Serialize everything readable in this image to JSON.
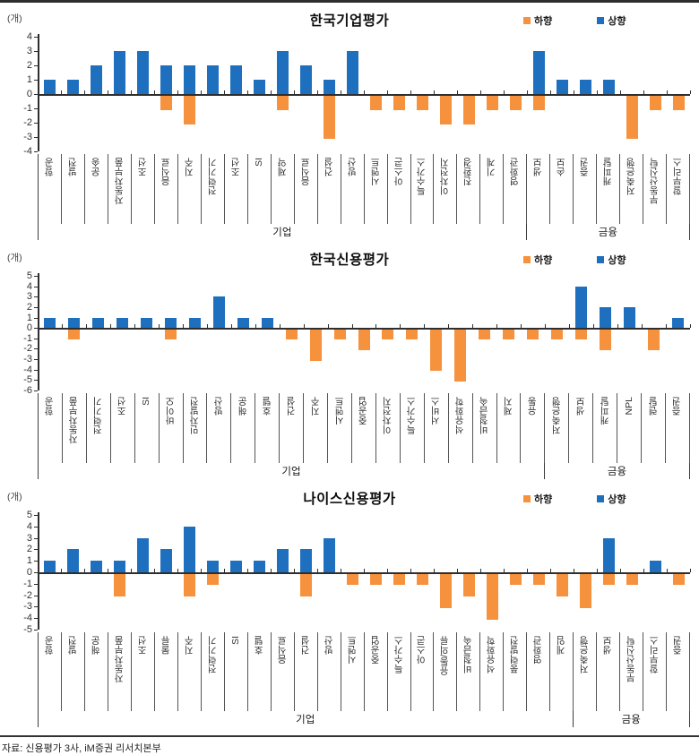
{
  "source_note": "자료: 신용평가 3사, iM증권 리서치본부",
  "legend": {
    "down_label": "하향",
    "up_label": "상향"
  },
  "colors": {
    "up": "#1E70BF",
    "down": "#F6913D",
    "axis": "#2e2e2e"
  },
  "chart_data": [
    {
      "type": "bar",
      "title": "한국기업평가",
      "unit_label": "(개)",
      "ylim": [
        -4,
        4
      ],
      "legend_entries": [
        "하향",
        "상향"
      ],
      "groups": [
        {
          "label": "기업",
          "items": [
            {
              "category": "항공",
              "up": 1,
              "down": 0
            },
            {
              "category": "발전",
              "up": 1,
              "down": 0
            },
            {
              "category": "운송",
              "up": 2,
              "down": 0
            },
            {
              "category": "자동차부품",
              "up": 3,
              "down": 0
            },
            {
              "category": "조선",
              "up": 3,
              "down": 0
            },
            {
              "category": "음식료",
              "up": 2,
              "down": -1
            },
            {
              "category": "지주",
              "up": 2,
              "down": -2
            },
            {
              "category": "전력기기",
              "up": 2,
              "down": 0
            },
            {
              "category": "조선",
              "up": 2,
              "down": 0
            },
            {
              "category": "SI",
              "up": 1,
              "down": 0
            },
            {
              "category": "제약",
              "up": 3,
              "down": -1
            },
            {
              "category": "음식료",
              "up": 2,
              "down": 0
            },
            {
              "category": "건설",
              "up": 1,
              "down": -3
            },
            {
              "category": "방산",
              "up": 3,
              "down": 0
            },
            {
              "category": "시멘트",
              "up": 0,
              "down": -1
            },
            {
              "category": "아스콘",
              "up": 0,
              "down": -1
            },
            {
              "category": "특수가스",
              "up": 0,
              "down": -1
            },
            {
              "category": "이차전지",
              "up": 0,
              "down": -2
            },
            {
              "category": "친환경",
              "up": 0,
              "down": -2
            },
            {
              "category": "기계",
              "up": 0,
              "down": -1
            },
            {
              "category": "영화관",
              "up": 0,
              "down": -1
            }
          ]
        },
        {
          "label": "금융",
          "items": [
            {
              "category": "생보",
              "up": 3,
              "down": -1
            },
            {
              "category": "손보",
              "up": 1,
              "down": 0
            },
            {
              "category": "증권",
              "up": 1,
              "down": 0
            },
            {
              "category": "캐피탈",
              "up": 1,
              "down": 0
            },
            {
              "category": "저축은행",
              "up": 0,
              "down": -3
            },
            {
              "category": "부동산신탁",
              "up": 0,
              "down": -1
            },
            {
              "category": "할부리스",
              "up": 0,
              "down": -1
            }
          ]
        }
      ]
    },
    {
      "type": "bar",
      "title": "한국신용평가",
      "unit_label": "(개)",
      "ylim": [
        -6,
        5
      ],
      "legend_entries": [
        "하향",
        "상향"
      ],
      "groups": [
        {
          "label": "기업",
          "items": [
            {
              "category": "항공",
              "up": 1,
              "down": 0
            },
            {
              "category": "자동차부품",
              "up": 1,
              "down": -1
            },
            {
              "category": "전력기기",
              "up": 1,
              "down": 0
            },
            {
              "category": "조선",
              "up": 1,
              "down": 0
            },
            {
              "category": "SI",
              "up": 1,
              "down": 0
            },
            {
              "category": "바이오",
              "up": 1,
              "down": -1
            },
            {
              "category": "민자발전",
              "up": 1,
              "down": 0
            },
            {
              "category": "방산",
              "up": 3,
              "down": 0
            },
            {
              "category": "해운",
              "up": 1,
              "down": 0
            },
            {
              "category": "호텔",
              "up": 1,
              "down": 0
            },
            {
              "category": "건설",
              "up": 0,
              "down": -1
            },
            {
              "category": "지주",
              "up": 0,
              "down": -3
            },
            {
              "category": "시멘트",
              "up": 0,
              "down": -1
            },
            {
              "category": "중공업",
              "up": 0,
              "down": -2
            },
            {
              "category": "이차전지",
              "up": 0,
              "down": -1
            },
            {
              "category": "특수가스",
              "up": 0,
              "down": -1
            },
            {
              "category": "서비스",
              "up": 0,
              "down": -4
            },
            {
              "category": "석유화학",
              "up": 0,
              "down": -5
            },
            {
              "category": "비철금속",
              "up": 0,
              "down": -1
            },
            {
              "category": "제지",
              "up": 0,
              "down": -1
            },
            {
              "category": "유통",
              "up": 0,
              "down": -1
            }
          ]
        },
        {
          "label": "금융",
          "items": [
            {
              "category": "저축은행",
              "up": 0,
              "down": -1
            },
            {
              "category": "생보",
              "up": 4,
              "down": -1
            },
            {
              "category": "캐피탈",
              "up": 2,
              "down": -2
            },
            {
              "category": "NPL",
              "up": 2,
              "down": 0
            },
            {
              "category": "렌탈",
              "up": 0,
              "down": -2
            },
            {
              "category": "증권",
              "up": 1,
              "down": 0
            }
          ]
        }
      ]
    },
    {
      "type": "bar",
      "title": "나이스신용평가",
      "unit_label": "(개)",
      "ylim": [
        -5,
        5
      ],
      "legend_entries": [
        "하향",
        "상향"
      ],
      "groups": [
        {
          "label": "기업",
          "items": [
            {
              "category": "항공",
              "up": 1,
              "down": 0
            },
            {
              "category": "발전",
              "up": 2,
              "down": 0
            },
            {
              "category": "해운",
              "up": 1,
              "down": 0
            },
            {
              "category": "자동차부품",
              "up": 1,
              "down": -2
            },
            {
              "category": "조선",
              "up": 3,
              "down": 0
            },
            {
              "category": "물류",
              "up": 2,
              "down": 0
            },
            {
              "category": "지주",
              "up": 4,
              "down": -2
            },
            {
              "category": "전력기기",
              "up": 1,
              "down": -1
            },
            {
              "category": "SI",
              "up": 1,
              "down": 0
            },
            {
              "category": "호텔",
              "up": 1,
              "down": 0
            },
            {
              "category": "음식료",
              "up": 2,
              "down": 0
            },
            {
              "category": "건설",
              "up": 2,
              "down": -2
            },
            {
              "category": "방산",
              "up": 3,
              "down": 0
            },
            {
              "category": "시멘트",
              "up": 0,
              "down": -1
            },
            {
              "category": "중공업",
              "up": 0,
              "down": -1
            },
            {
              "category": "특수가스",
              "up": 0,
              "down": -1
            },
            {
              "category": "아스콘",
              "up": 0,
              "down": -1
            },
            {
              "category": "유통/의류",
              "up": 0,
              "down": -3
            },
            {
              "category": "비철금속",
              "up": 0,
              "down": -2
            },
            {
              "category": "석유화학",
              "up": 0,
              "down": -4
            },
            {
              "category": "풍력발전",
              "up": 0,
              "down": -1
            },
            {
              "category": "영화관",
              "up": 0,
              "down": -1
            },
            {
              "category": "게임",
              "up": 0,
              "down": -2
            }
          ]
        },
        {
          "label": "금융",
          "items": [
            {
              "category": "저축은행",
              "up": 0,
              "down": -3
            },
            {
              "category": "생보",
              "up": 3,
              "down": -1
            },
            {
              "category": "부동산신탁",
              "up": 0,
              "down": -1
            },
            {
              "category": "할부리스",
              "up": 1,
              "down": 0
            },
            {
              "category": "증권",
              "up": 0,
              "down": -1
            }
          ]
        }
      ]
    }
  ]
}
